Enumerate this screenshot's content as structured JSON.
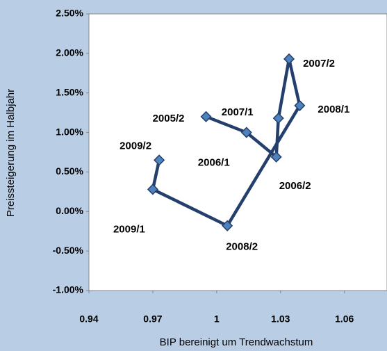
{
  "chart_data": {
    "type": "scatter-line",
    "x_label": "BIP bereinigt um Trendwachstum",
    "y_label": "Preissteigerung im Halbjahr",
    "point_labels": [
      "2005/2",
      "2006/1",
      "2006/2",
      "2007/1",
      "2007/2",
      "2008/1",
      "2008/2",
      "2009/1",
      "2009/2"
    ],
    "x": [
      0.995,
      1.014,
      1.028,
      1.029,
      1.034,
      1.039,
      1.005,
      0.97,
      0.973
    ],
    "values": [
      1.2,
      1.0,
      0.69,
      1.18,
      1.93,
      1.34,
      -0.18,
      0.28,
      0.65
    ],
    "line_color": "#243f6b",
    "marker_color": "#4f81bd",
    "xlim": [
      0.94,
      1.08
    ],
    "xticks": [
      0.94,
      0.97,
      1,
      1.03,
      1.06
    ],
    "ylim": [
      -1,
      2.5
    ],
    "yticks": [
      {
        "value": -1,
        "label": "-1.00%"
      },
      {
        "value": -0.5,
        "label": "-0.50%"
      },
      {
        "value": 0,
        "label": "0.00%"
      },
      {
        "value": 0.5,
        "label": "0.50%"
      },
      {
        "value": 1,
        "label": "1.00%"
      },
      {
        "value": 1.5,
        "label": "1.50%"
      },
      {
        "value": 2,
        "label": "2.00%"
      },
      {
        "value": 2.5,
        "label": "2.50%"
      }
    ],
    "grid": false
  }
}
